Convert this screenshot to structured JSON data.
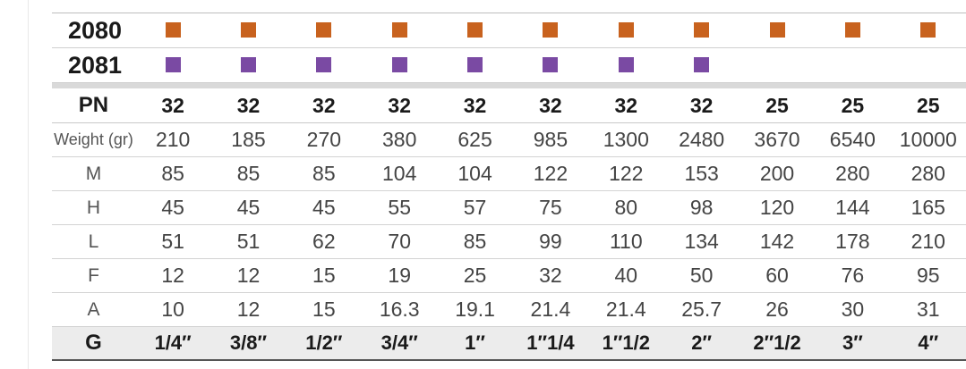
{
  "colors": {
    "model_2080": "#c8621e",
    "model_2081": "#7a4aa3"
  },
  "models": [
    {
      "label": "2080",
      "color": "#c8621e",
      "available": [
        true,
        true,
        true,
        true,
        true,
        true,
        true,
        true,
        true,
        true,
        true
      ]
    },
    {
      "label": "2081",
      "color": "#7a4aa3",
      "available": [
        true,
        true,
        true,
        true,
        true,
        true,
        true,
        true,
        false,
        false,
        false
      ]
    }
  ],
  "spec_rows": [
    {
      "label": "PN",
      "values": [
        "32",
        "32",
        "32",
        "32",
        "32",
        "32",
        "32",
        "32",
        "25",
        "25",
        "25"
      ]
    },
    {
      "label": "Weight (gr)",
      "values": [
        "210",
        "185",
        "270",
        "380",
        "625",
        "985",
        "1300",
        "2480",
        "3670",
        "6540",
        "10000"
      ]
    },
    {
      "label": "M",
      "values": [
        "85",
        "85",
        "85",
        "104",
        "104",
        "122",
        "122",
        "153",
        "200",
        "280",
        "280"
      ]
    },
    {
      "label": "H",
      "values": [
        "45",
        "45",
        "45",
        "55",
        "57",
        "75",
        "80",
        "98",
        "120",
        "144",
        "165"
      ]
    },
    {
      "label": "L",
      "values": [
        "51",
        "51",
        "62",
        "70",
        "85",
        "99",
        "110",
        "134",
        "142",
        "178",
        "210"
      ]
    },
    {
      "label": "F",
      "values": [
        "12",
        "12",
        "15",
        "19",
        "25",
        "32",
        "40",
        "50",
        "60",
        "76",
        "95"
      ]
    },
    {
      "label": "A",
      "values": [
        "10",
        "12",
        "15",
        "16.3",
        "19.1",
        "21.4",
        "21.4",
        "25.7",
        "26",
        "30",
        "31"
      ]
    }
  ],
  "size_row": {
    "label": "G",
    "values": [
      "1/4″",
      "3/8″",
      "1/2″",
      "3/4″",
      "1″",
      "1″1/4",
      "1″1/2",
      "2″",
      "2″1/2",
      "3″",
      "4″"
    ]
  }
}
